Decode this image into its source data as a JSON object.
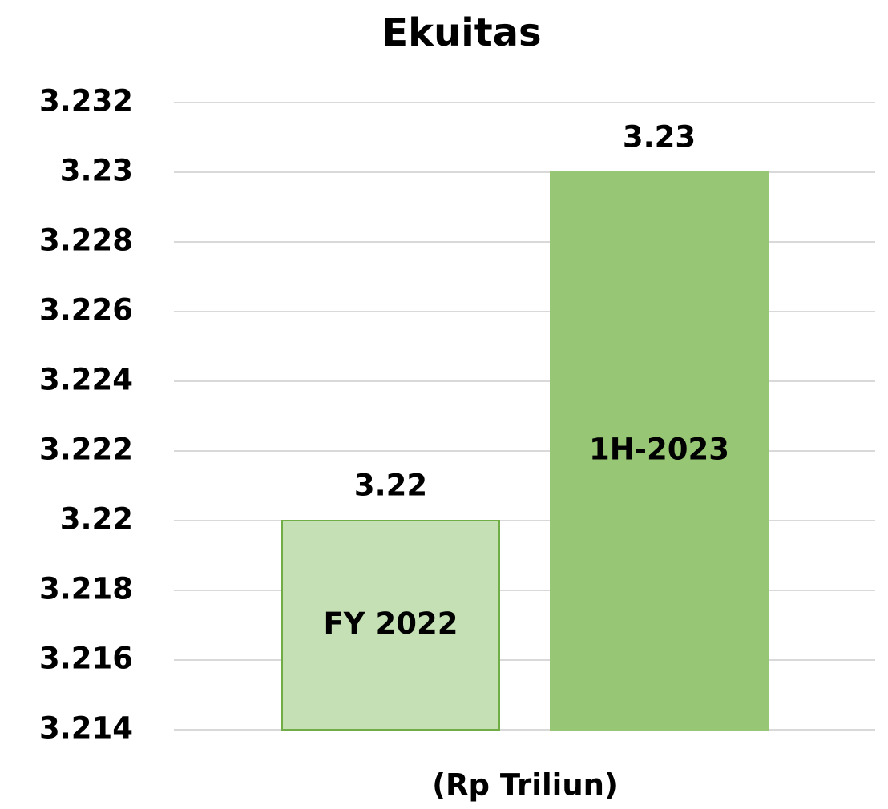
{
  "chart_data": {
    "type": "bar",
    "title": "Ekuitas",
    "xlabel": "(Rp Triliun)",
    "categories": [
      "FY 2022",
      "1H-2023"
    ],
    "values": [
      3.22,
      3.23
    ],
    "colors": [
      "#c5e0b4",
      "#97c674"
    ],
    "edge_colors": [
      "#70ad47",
      "#97c674"
    ],
    "ylim": [
      3.214,
      3.232
    ],
    "yticks": [
      3.214,
      3.216,
      3.218,
      3.22,
      3.222,
      3.224,
      3.226,
      3.228,
      3.23,
      3.232
    ],
    "grid": true
  }
}
